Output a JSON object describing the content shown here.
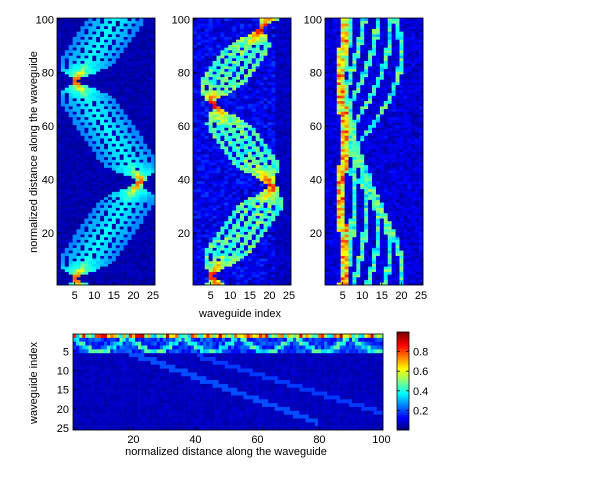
{
  "figure": {
    "top_panels": {
      "ylabel": "normalized distance along the waveguide",
      "xlabel": "waveguide index",
      "x_ticks": [
        5,
        10,
        15,
        20,
        25
      ],
      "y_ticks": [
        20,
        40,
        60,
        80,
        100
      ]
    },
    "bottom_panel": {
      "ylabel": "waveguide index",
      "xlabel": "normalized distance along the waveguide",
      "x_ticks": [
        20,
        40,
        60,
        80,
        100
      ],
      "y_ticks": [
        5,
        10,
        15,
        20,
        25
      ]
    },
    "colorbar": {
      "ticks": [
        0.2,
        0.4,
        0.6,
        0.8
      ],
      "range": [
        0,
        1
      ],
      "colormap": "jet"
    }
  },
  "chart_data": [
    {
      "type": "heatmap",
      "panel": "top-left",
      "xlabel": "",
      "ylabel": "normalized distance along the waveguide",
      "xlim": [
        1,
        25
      ],
      "ylim": [
        1,
        100
      ],
      "pattern": "periodic self-imaging: beam bounces between waveguide 5 and 22; focal points near y = 3, 39, 77",
      "focal_points": [
        {
          "x": 5,
          "y": 3
        },
        {
          "x": 22,
          "y": 39
        },
        {
          "x": 5,
          "y": 77
        }
      ]
    },
    {
      "type": "heatmap",
      "panel": "top-middle",
      "xlabel": "waveguide index",
      "ylabel": "",
      "xlim": [
        1,
        25
      ],
      "ylim": [
        1,
        100
      ],
      "pattern": "imperfect self-imaging: bright paths between waveguide 5 and 22 with broadened side branches",
      "focal_points": [
        {
          "x": 5,
          "y": 4
        },
        {
          "x": 21,
          "y": 38
        },
        {
          "x": 5,
          "y": 68
        },
        {
          "x": 21,
          "y": 97
        }
      ]
    },
    {
      "type": "heatmap",
      "panel": "top-right",
      "xlabel": "",
      "ylabel": "",
      "xlim": [
        1,
        25
      ],
      "ylim": [
        1,
        100
      ],
      "pattern": "localized propagation near waveguide 5 with diffracting side lobes",
      "focal_points": [
        {
          "x": 5,
          "y": 4
        },
        {
          "x": 6,
          "y": 24
        },
        {
          "x": 5,
          "y": 66
        },
        {
          "x": 5,
          "y": 78
        }
      ]
    },
    {
      "type": "heatmap",
      "panel": "bottom",
      "xlabel": "normalized distance along the waveguide",
      "ylabel": "waveguide index",
      "xlim": [
        1,
        100
      ],
      "ylim": [
        1,
        25
      ],
      "pattern": "intensity concentrated in first waveguide row with periodic arcs into rows 2-5; faint diagonal diffraction into higher indices",
      "clim": [
        0,
        1
      ]
    }
  ]
}
